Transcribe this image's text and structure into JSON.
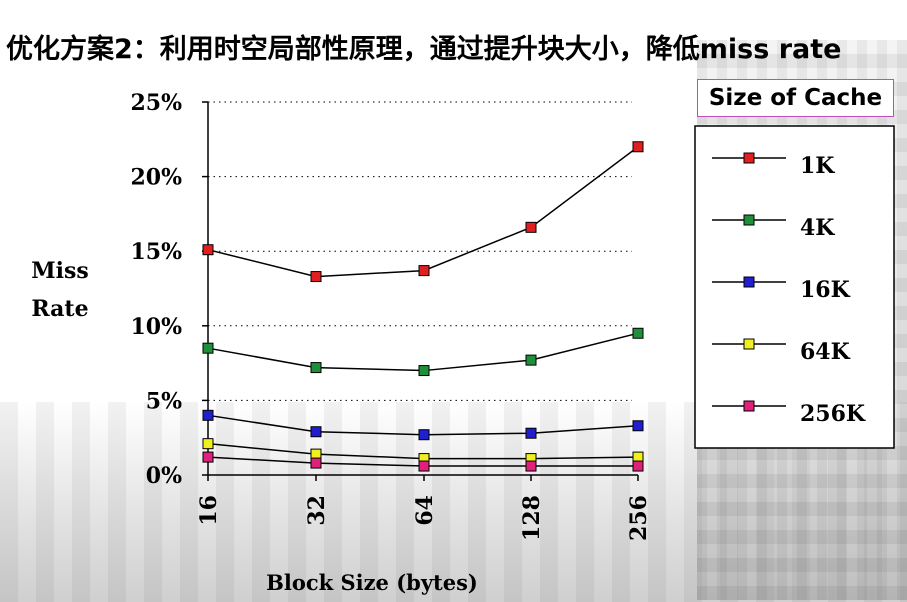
{
  "slide": {
    "title": "优化方案2：利用时空局部性原理，通过提升块大小，降低miss rate"
  },
  "chart_data": {
    "type": "line",
    "x": [
      "16",
      "32",
      "64",
      "128",
      "256"
    ],
    "xlabel": "Block Size (bytes)",
    "ylabel_lines": [
      "Miss",
      "Rate"
    ],
    "ylabel": "Miss Rate",
    "ylim": [
      0,
      25
    ],
    "yticks": [
      "0%",
      "5%",
      "10%",
      "15%",
      "20%",
      "25%"
    ],
    "ytick_values": [
      0,
      5,
      10,
      15,
      20,
      25
    ],
    "grid": "horizontal dotted",
    "legend_title": "Size of Cache",
    "legend_position": "right",
    "series": [
      {
        "name": "1K",
        "color": "#e02020",
        "values": [
          15.1,
          13.3,
          13.7,
          16.6,
          22.0
        ]
      },
      {
        "name": "4K",
        "color": "#1f8f3a",
        "values": [
          8.5,
          7.2,
          7.0,
          7.7,
          9.5
        ]
      },
      {
        "name": "16K",
        "color": "#1f1fd0",
        "values": [
          4.0,
          2.9,
          2.7,
          2.8,
          3.3
        ]
      },
      {
        "name": "64K",
        "color": "#f0f020",
        "values": [
          2.1,
          1.4,
          1.1,
          1.1,
          1.2
        ]
      },
      {
        "name": "256K",
        "color": "#e0207a",
        "values": [
          1.2,
          0.8,
          0.6,
          0.6,
          0.6
        ]
      }
    ]
  }
}
